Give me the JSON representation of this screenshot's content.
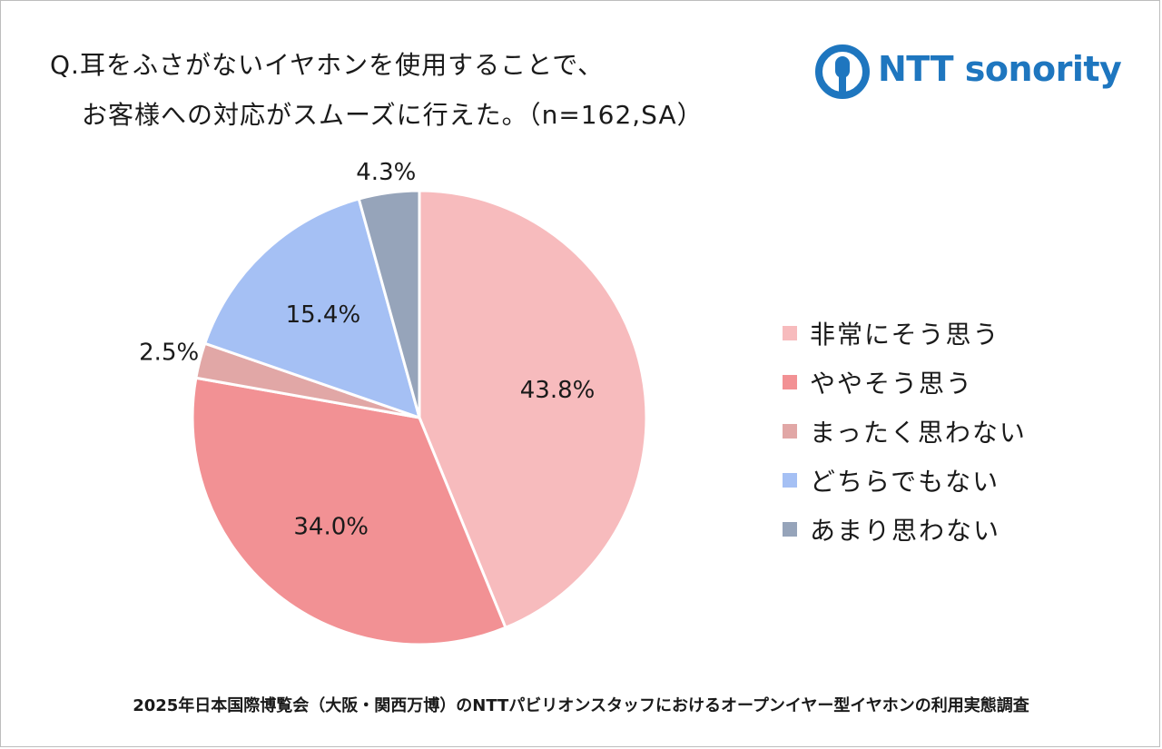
{
  "question": {
    "line1": "Q.耳をふさがないイヤホンを使用することで、",
    "line2": "お客様への対応がスムーズに行えた。（n=162,SA）"
  },
  "logo": {
    "text": "NTT sonority",
    "color": "#1e76bf",
    "icon": "ntt-logo-mark-icon"
  },
  "chart_data": {
    "type": "pie",
    "start_angle_deg": 0,
    "direction": "clockwise",
    "slices": [
      {
        "label": "非常にそう思う",
        "value": 43.8,
        "value_label": "43.8%",
        "color": "#f7bbbd"
      },
      {
        "label": "ややそう思う",
        "value": 34.0,
        "value_label": "34.0%",
        "color": "#f29194"
      },
      {
        "label": "まったく思わない",
        "value": 2.5,
        "value_label": "2.5%",
        "color": "#e1a7a6"
      },
      {
        "label": "どちらでもない",
        "value": 15.4,
        "value_label": "15.4%",
        "color": "#a5c0f4"
      },
      {
        "label": "あまり思わない",
        "value": 4.3,
        "value_label": "4.3%",
        "color": "#96a4ba"
      }
    ],
    "legend_order": [
      0,
      1,
      2,
      3,
      4
    ],
    "legend_position": "right"
  },
  "footer": "2025年日本国際博覧会（大阪・関西万博）のNTTパビリオンスタッフにおけるオープンイヤー型イヤホンの利用実態調査"
}
